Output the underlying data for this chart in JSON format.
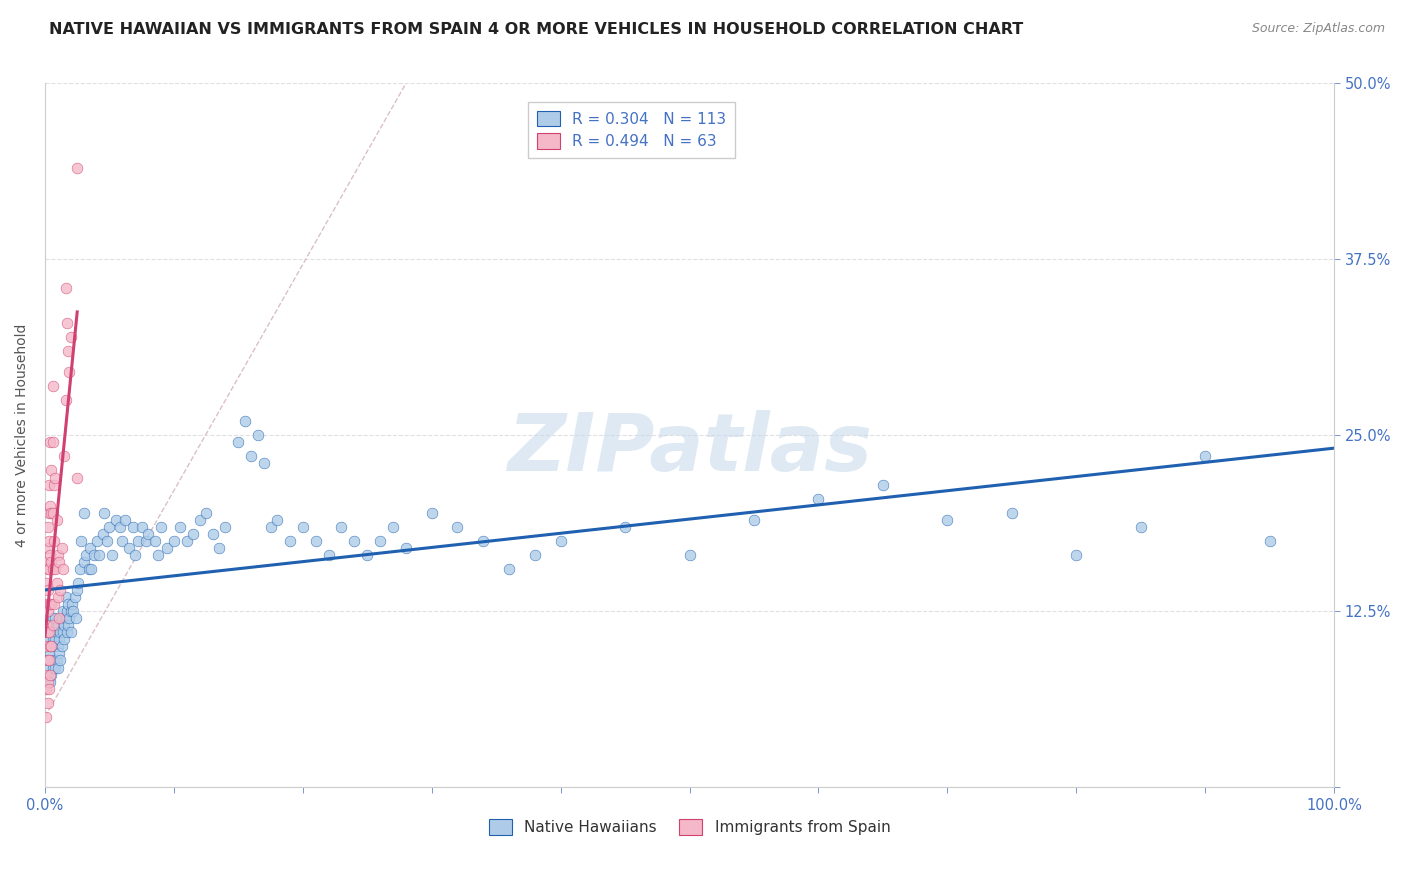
{
  "title": "NATIVE HAWAIIAN VS IMMIGRANTS FROM SPAIN 4 OR MORE VEHICLES IN HOUSEHOLD CORRELATION CHART",
  "source": "Source: ZipAtlas.com",
  "ylabel_label": "4 or more Vehicles in Household",
  "legend_label1": "Native Hawaiians",
  "legend_label2": "Immigrants from Spain",
  "R1": "0.304",
  "N1": "113",
  "R2": "0.494",
  "N2": "63",
  "color1": "#aecce8",
  "color2": "#f4b8c8",
  "line_color1": "#2060b0",
  "line_color2": "#d04070",
  "dash_line_color": "#d8b8c0",
  "watermark": "ZIPatlas",
  "title_fontsize": 11.5,
  "source_fontsize": 9,
  "tick_color": "#4472c4",
  "blue_scatter": [
    [
      0.001,
      0.105
    ],
    [
      0.002,
      0.09
    ],
    [
      0.003,
      0.1
    ],
    [
      0.003,
      0.085
    ],
    [
      0.004,
      0.075
    ],
    [
      0.004,
      0.095
    ],
    [
      0.005,
      0.08
    ],
    [
      0.005,
      0.1
    ],
    [
      0.005,
      0.115
    ],
    [
      0.006,
      0.085
    ],
    [
      0.006,
      0.105
    ],
    [
      0.006,
      0.12
    ],
    [
      0.007,
      0.09
    ],
    [
      0.007,
      0.1
    ],
    [
      0.007,
      0.11
    ],
    [
      0.008,
      0.085
    ],
    [
      0.008,
      0.105
    ],
    [
      0.008,
      0.12
    ],
    [
      0.009,
      0.09
    ],
    [
      0.009,
      0.11
    ],
    [
      0.01,
      0.085
    ],
    [
      0.01,
      0.1
    ],
    [
      0.01,
      0.115
    ],
    [
      0.011,
      0.095
    ],
    [
      0.011,
      0.105
    ],
    [
      0.012,
      0.09
    ],
    [
      0.012,
      0.11
    ],
    [
      0.013,
      0.1
    ],
    [
      0.013,
      0.12
    ],
    [
      0.014,
      0.11
    ],
    [
      0.014,
      0.125
    ],
    [
      0.015,
      0.105
    ],
    [
      0.015,
      0.115
    ],
    [
      0.016,
      0.12
    ],
    [
      0.016,
      0.135
    ],
    [
      0.017,
      0.11
    ],
    [
      0.017,
      0.125
    ],
    [
      0.018,
      0.115
    ],
    [
      0.018,
      0.13
    ],
    [
      0.019,
      0.12
    ],
    [
      0.02,
      0.125
    ],
    [
      0.02,
      0.11
    ],
    [
      0.021,
      0.13
    ],
    [
      0.022,
      0.125
    ],
    [
      0.023,
      0.135
    ],
    [
      0.024,
      0.12
    ],
    [
      0.025,
      0.14
    ],
    [
      0.026,
      0.145
    ],
    [
      0.027,
      0.155
    ],
    [
      0.028,
      0.175
    ],
    [
      0.03,
      0.16
    ],
    [
      0.03,
      0.195
    ],
    [
      0.032,
      0.165
    ],
    [
      0.034,
      0.155
    ],
    [
      0.035,
      0.17
    ],
    [
      0.036,
      0.155
    ],
    [
      0.038,
      0.165
    ],
    [
      0.04,
      0.175
    ],
    [
      0.042,
      0.165
    ],
    [
      0.045,
      0.18
    ],
    [
      0.046,
      0.195
    ],
    [
      0.048,
      0.175
    ],
    [
      0.05,
      0.185
    ],
    [
      0.052,
      0.165
    ],
    [
      0.055,
      0.19
    ],
    [
      0.058,
      0.185
    ],
    [
      0.06,
      0.175
    ],
    [
      0.062,
      0.19
    ],
    [
      0.065,
      0.17
    ],
    [
      0.068,
      0.185
    ],
    [
      0.07,
      0.165
    ],
    [
      0.072,
      0.175
    ],
    [
      0.075,
      0.185
    ],
    [
      0.078,
      0.175
    ],
    [
      0.08,
      0.18
    ],
    [
      0.085,
      0.175
    ],
    [
      0.088,
      0.165
    ],
    [
      0.09,
      0.185
    ],
    [
      0.095,
      0.17
    ],
    [
      0.1,
      0.175
    ],
    [
      0.105,
      0.185
    ],
    [
      0.11,
      0.175
    ],
    [
      0.115,
      0.18
    ],
    [
      0.12,
      0.19
    ],
    [
      0.125,
      0.195
    ],
    [
      0.13,
      0.18
    ],
    [
      0.135,
      0.17
    ],
    [
      0.14,
      0.185
    ],
    [
      0.15,
      0.245
    ],
    [
      0.155,
      0.26
    ],
    [
      0.16,
      0.235
    ],
    [
      0.165,
      0.25
    ],
    [
      0.17,
      0.23
    ],
    [
      0.175,
      0.185
    ],
    [
      0.18,
      0.19
    ],
    [
      0.19,
      0.175
    ],
    [
      0.2,
      0.185
    ],
    [
      0.21,
      0.175
    ],
    [
      0.22,
      0.165
    ],
    [
      0.23,
      0.185
    ],
    [
      0.24,
      0.175
    ],
    [
      0.25,
      0.165
    ],
    [
      0.26,
      0.175
    ],
    [
      0.27,
      0.185
    ],
    [
      0.28,
      0.17
    ],
    [
      0.3,
      0.195
    ],
    [
      0.32,
      0.185
    ],
    [
      0.34,
      0.175
    ],
    [
      0.36,
      0.155
    ],
    [
      0.38,
      0.165
    ],
    [
      0.4,
      0.175
    ],
    [
      0.45,
      0.185
    ],
    [
      0.5,
      0.165
    ],
    [
      0.55,
      0.19
    ],
    [
      0.6,
      0.205
    ],
    [
      0.65,
      0.215
    ],
    [
      0.7,
      0.19
    ],
    [
      0.75,
      0.195
    ],
    [
      0.8,
      0.165
    ],
    [
      0.85,
      0.185
    ],
    [
      0.9,
      0.235
    ],
    [
      0.95,
      0.175
    ]
  ],
  "pink_scatter": [
    [
      0.001,
      0.05
    ],
    [
      0.001,
      0.07
    ],
    [
      0.001,
      0.08
    ],
    [
      0.001,
      0.1
    ],
    [
      0.001,
      0.115
    ],
    [
      0.001,
      0.13
    ],
    [
      0.001,
      0.145
    ],
    [
      0.001,
      0.16
    ],
    [
      0.002,
      0.06
    ],
    [
      0.002,
      0.075
    ],
    [
      0.002,
      0.09
    ],
    [
      0.002,
      0.11
    ],
    [
      0.002,
      0.125
    ],
    [
      0.002,
      0.14
    ],
    [
      0.002,
      0.155
    ],
    [
      0.002,
      0.17
    ],
    [
      0.002,
      0.185
    ],
    [
      0.003,
      0.07
    ],
    [
      0.003,
      0.09
    ],
    [
      0.003,
      0.11
    ],
    [
      0.003,
      0.13
    ],
    [
      0.003,
      0.155
    ],
    [
      0.003,
      0.175
    ],
    [
      0.003,
      0.195
    ],
    [
      0.003,
      0.215
    ],
    [
      0.004,
      0.08
    ],
    [
      0.004,
      0.1
    ],
    [
      0.004,
      0.13
    ],
    [
      0.004,
      0.165
    ],
    [
      0.004,
      0.2
    ],
    [
      0.004,
      0.245
    ],
    [
      0.005,
      0.1
    ],
    [
      0.005,
      0.13
    ],
    [
      0.005,
      0.16
    ],
    [
      0.005,
      0.195
    ],
    [
      0.005,
      0.225
    ],
    [
      0.006,
      0.115
    ],
    [
      0.006,
      0.155
    ],
    [
      0.006,
      0.195
    ],
    [
      0.006,
      0.245
    ],
    [
      0.006,
      0.285
    ],
    [
      0.007,
      0.13
    ],
    [
      0.007,
      0.175
    ],
    [
      0.007,
      0.215
    ],
    [
      0.008,
      0.155
    ],
    [
      0.008,
      0.22
    ],
    [
      0.009,
      0.145
    ],
    [
      0.009,
      0.19
    ],
    [
      0.01,
      0.135
    ],
    [
      0.01,
      0.165
    ],
    [
      0.011,
      0.12
    ],
    [
      0.011,
      0.16
    ],
    [
      0.012,
      0.14
    ],
    [
      0.013,
      0.17
    ],
    [
      0.014,
      0.155
    ],
    [
      0.015,
      0.235
    ],
    [
      0.016,
      0.275
    ],
    [
      0.016,
      0.355
    ],
    [
      0.017,
      0.33
    ],
    [
      0.018,
      0.31
    ],
    [
      0.019,
      0.295
    ],
    [
      0.02,
      0.32
    ],
    [
      0.025,
      0.22
    ],
    [
      0.025,
      0.44
    ]
  ],
  "xlim": [
    0.0,
    1.0
  ],
  "ylim": [
    0.0,
    0.5
  ],
  "bg_color": "#ffffff",
  "grid_color": "#e0e0e0",
  "watermark_color": "#c5d8ea",
  "watermark_alpha": 0.55
}
